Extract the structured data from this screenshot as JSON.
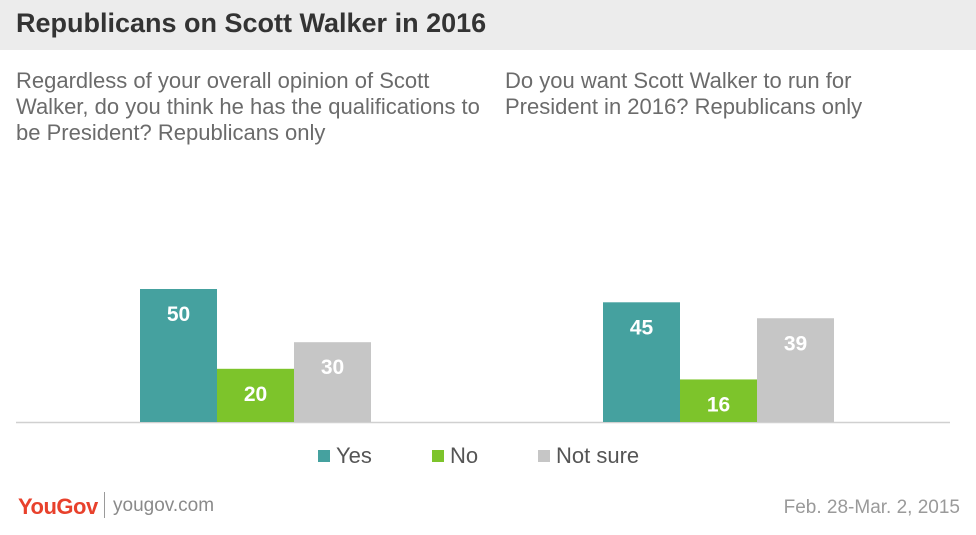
{
  "title": "Republicans on Scott Walker in 2016",
  "colors": {
    "yes": "#45a19f",
    "no": "#7dc42b",
    "not_sure": "#c6c6c6",
    "brand": "#e8412c"
  },
  "chart_data": [
    {
      "type": "bar",
      "title": "Regardless of your overall opinion of Scott Walker, do you think he has the qualifications to be President? Republicans only",
      "categories": [
        "Yes",
        "No",
        "Not sure"
      ],
      "values": [
        50,
        20,
        30
      ]
    },
    {
      "type": "bar",
      "title": "Do you want Scott Walker to run for President in 2016? Republicans only",
      "categories": [
        "Yes",
        "No",
        "Not sure"
      ],
      "values": [
        45,
        16,
        39
      ]
    }
  ],
  "legend": [
    "Yes",
    "No",
    "Not sure"
  ],
  "footer": {
    "logo": "YouGov",
    "site": "yougov.com",
    "date": "Feb. 28-Mar. 2, 2015"
  }
}
